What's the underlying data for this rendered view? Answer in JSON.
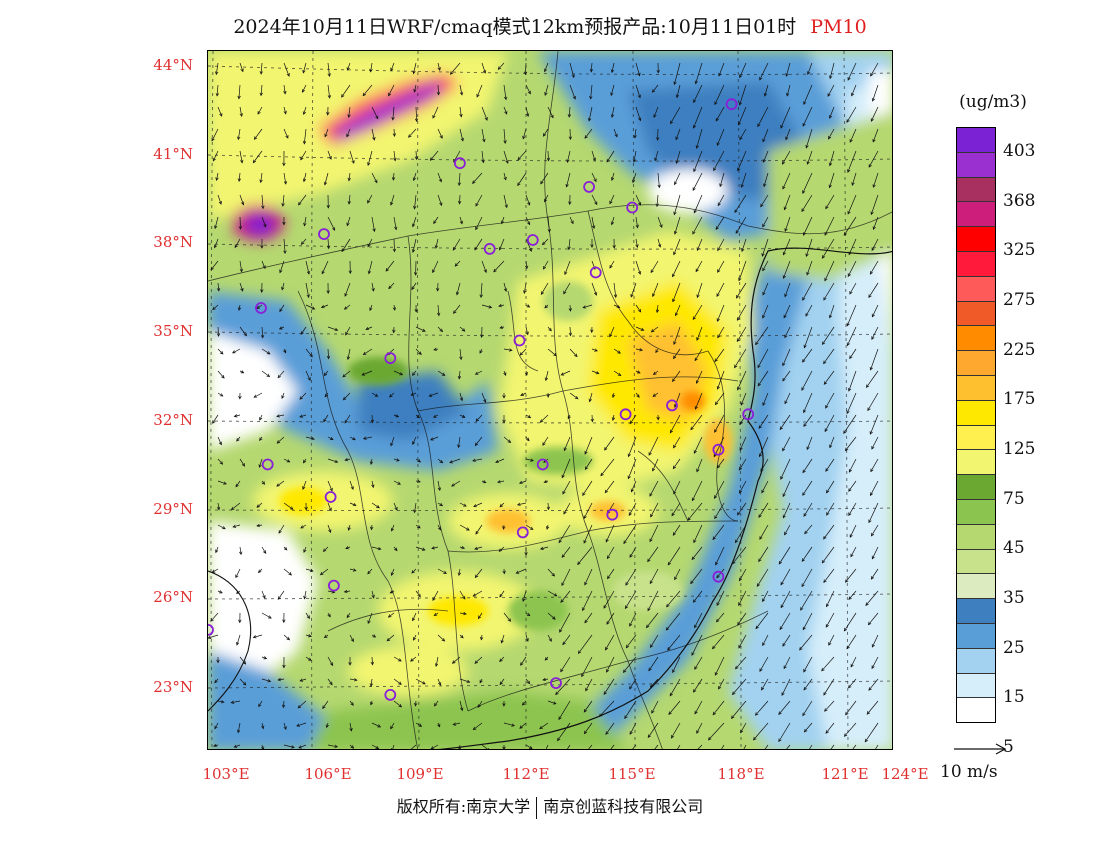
{
  "title": {
    "main": "2024年10月11日WRF/cmaq模式12km预报产品:10月11日01时",
    "pollutant": "PM10"
  },
  "map": {
    "lat_labels": [
      "44°N",
      "41°N",
      "38°N",
      "35°N",
      "32°N",
      "29°N",
      "26°N",
      "23°N"
    ],
    "lon_labels": [
      "103°E",
      "106°E",
      "109°E",
      "112°E",
      "115°E",
      "118°E",
      "121°E",
      "124°E"
    ],
    "extent": {
      "lon_min": 102.8,
      "lon_max": 123.5,
      "lat_min": 20.9,
      "lat_max": 44.6
    },
    "cities": [
      {
        "lon": 118.6,
        "lat": 42.8
      },
      {
        "lon": 110.4,
        "lat": 40.8
      },
      {
        "lon": 114.3,
        "lat": 40.0
      },
      {
        "lon": 115.6,
        "lat": 39.3
      },
      {
        "lon": 106.3,
        "lat": 38.4
      },
      {
        "lon": 111.3,
        "lat": 37.9
      },
      {
        "lon": 112.6,
        "lat": 38.2
      },
      {
        "lon": 114.5,
        "lat": 37.1
      },
      {
        "lon": 104.4,
        "lat": 35.9
      },
      {
        "lon": 108.3,
        "lat": 34.2
      },
      {
        "lon": 112.2,
        "lat": 34.8
      },
      {
        "lon": 115.4,
        "lat": 32.3
      },
      {
        "lon": 116.8,
        "lat": 32.6
      },
      {
        "lon": 119.1,
        "lat": 32.3
      },
      {
        "lon": 118.2,
        "lat": 31.1
      },
      {
        "lon": 104.6,
        "lat": 30.6
      },
      {
        "lon": 112.9,
        "lat": 30.6
      },
      {
        "lon": 106.5,
        "lat": 29.5
      },
      {
        "lon": 115.0,
        "lat": 28.9
      },
      {
        "lon": 112.3,
        "lat": 28.3
      },
      {
        "lon": 118.2,
        "lat": 26.8
      },
      {
        "lon": 106.6,
        "lat": 26.5
      },
      {
        "lon": 102.8,
        "lat": 25.0
      },
      {
        "lon": 108.3,
        "lat": 22.8
      },
      {
        "lon": 113.3,
        "lat": 23.2
      }
    ]
  },
  "legend": {
    "unit": "(ug/m3)",
    "colors": [
      "#7a22d4",
      "#9b30d0",
      "#a83060",
      "#cc1e7a",
      "#ff0000",
      "#ff1a3c",
      "#ff5a5a",
      "#f05a28",
      "#ff8c00",
      "#ffa830",
      "#ffc030",
      "#ffe800",
      "#fff050",
      "#f2f570",
      "#6aa832",
      "#8cc450",
      "#b5d870",
      "#c8e28c",
      "#ddecc0",
      "#3e7fc0",
      "#5a9ed8",
      "#a2d2f0",
      "#d6eefa",
      "#ffffff"
    ],
    "ticks": [
      "403",
      "368",
      "325",
      "275",
      "225",
      "175",
      "125",
      "75",
      "45",
      "35",
      "25",
      "15",
      "5"
    ]
  },
  "wind_reference": {
    "label": "10 m/s"
  },
  "copyright": {
    "left": "版权所有:南京大学",
    "right": "南京创蓝科技有限公司"
  }
}
